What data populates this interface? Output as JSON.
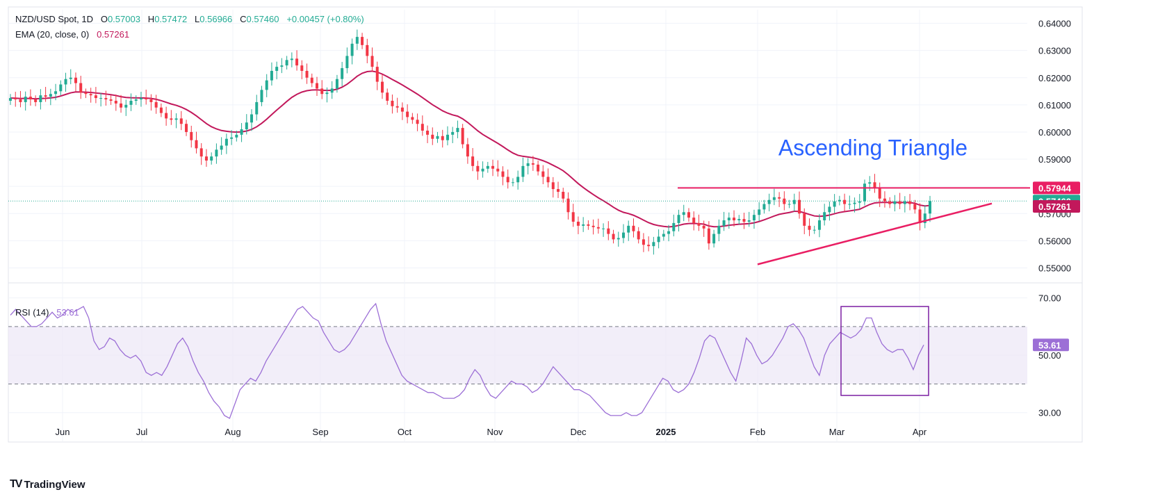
{
  "header": {
    "symbol": "NZD/USD Spot, 1D",
    "open_label": "O",
    "open": "0.57003",
    "high_label": "H",
    "high": "0.57472",
    "low_label": "L",
    "low": "0.56966",
    "close_label": "C",
    "close": "0.57460",
    "change": "+0.00457 (+0.80%)",
    "ema_label": "EMA (20, close, 0)",
    "ema_value": "0.57261",
    "rsi_label": "RSI (14)",
    "rsi_value": "53.61"
  },
  "brand": {
    "name": "TradingView",
    "logo": "TV"
  },
  "colors": {
    "up": "#22ab94",
    "down": "#f23645",
    "ema": "#c2185b",
    "trend": "#e91e63",
    "rsi": "#9c6fd6",
    "rsi_band": "#ede7f6"
  },
  "chart_data": [
    {
      "type": "candlestick",
      "title": "NZD/USD Spot, 1D",
      "ylim": [
        0.545,
        0.645
      ],
      "y_ticks": [
        "0.64000",
        "0.63000",
        "0.62000",
        "0.61000",
        "0.60000",
        "0.59000",
        "0.58000",
        "0.57000",
        "0.56000",
        "0.55000"
      ],
      "x_ticks": [
        "Jun",
        "Jul",
        "Aug",
        "Sep",
        "Oct",
        "Nov",
        "Dec",
        "2025",
        "Feb",
        "Mar",
        "Apr"
      ],
      "closes": [
        0.6125,
        0.612,
        0.611,
        0.613,
        0.612,
        0.611,
        0.6135,
        0.613,
        0.614,
        0.615,
        0.6175,
        0.6195,
        0.62,
        0.618,
        0.6145,
        0.614,
        0.6135,
        0.6125,
        0.6125,
        0.612,
        0.6115,
        0.6105,
        0.609,
        0.61,
        0.6115,
        0.612,
        0.6125,
        0.612,
        0.611,
        0.609,
        0.607,
        0.605,
        0.6045,
        0.605,
        0.603,
        0.6,
        0.597,
        0.594,
        0.591,
        0.5895,
        0.591,
        0.5935,
        0.595,
        0.5975,
        0.598,
        0.599,
        0.601,
        0.6035,
        0.6065,
        0.611,
        0.6155,
        0.619,
        0.6225,
        0.624,
        0.6245,
        0.6265,
        0.627,
        0.6245,
        0.6225,
        0.62,
        0.618,
        0.616,
        0.614,
        0.6145,
        0.616,
        0.6195,
        0.6235,
        0.628,
        0.6325,
        0.635,
        0.632,
        0.628,
        0.624,
        0.6185,
        0.6145,
        0.6115,
        0.6095,
        0.609,
        0.6075,
        0.6055,
        0.6045,
        0.603,
        0.6005,
        0.599,
        0.5975,
        0.5985,
        0.597,
        0.599,
        0.6,
        0.6015,
        0.5955,
        0.591,
        0.5875,
        0.5855,
        0.5865,
        0.5875,
        0.5865,
        0.5855,
        0.5835,
        0.5815,
        0.5815,
        0.5835,
        0.5875,
        0.5885,
        0.588,
        0.5855,
        0.5835,
        0.5815,
        0.579,
        0.578,
        0.5755,
        0.5705,
        0.567,
        0.5655,
        0.566,
        0.5655,
        0.565,
        0.5645,
        0.5645,
        0.5625,
        0.5605,
        0.561,
        0.563,
        0.5655,
        0.5635,
        0.5605,
        0.5585,
        0.558,
        0.5595,
        0.5615,
        0.5625,
        0.5635,
        0.5665,
        0.5695,
        0.5705,
        0.5685,
        0.5665,
        0.5655,
        0.5645,
        0.559,
        0.5625,
        0.5655,
        0.5675,
        0.5685,
        0.5675,
        0.568,
        0.567,
        0.5675,
        0.5695,
        0.5715,
        0.5735,
        0.575,
        0.576,
        0.5755,
        0.5735,
        0.5735,
        0.575,
        0.57,
        0.5655,
        0.564,
        0.564,
        0.5675,
        0.5705,
        0.5725,
        0.5745,
        0.575,
        0.5735,
        0.5735,
        0.574,
        0.5745,
        0.581,
        0.5815,
        0.5795,
        0.5755,
        0.5745,
        0.5735,
        0.5745,
        0.5735,
        0.5745,
        0.5735,
        0.5715,
        0.5665,
        0.57,
        0.5746
      ],
      "series": [
        {
          "name": "EMA (20, close, 0)",
          "last": 0.57261
        }
      ],
      "price_labels": [
        {
          "value": 0.57944,
          "text": "0.57944",
          "color": "#e91e63"
        },
        {
          "value": 0.5746,
          "text": "0.57460",
          "color": "#22ab94"
        },
        {
          "value": 0.57261,
          "text": "0.57261",
          "color": "#c2185b"
        }
      ],
      "annotations": [
        {
          "text": "Ascending Triangle",
          "x_index": 148,
          "y": 0.594
        }
      ],
      "resistance": {
        "value": 0.57944,
        "x_start": 134,
        "x_end": 200
      },
      "support": {
        "start": [
          147,
          0.5513
        ],
        "end": [
          200,
          0.5737
        ]
      }
    },
    {
      "type": "line",
      "title": "RSI (14)",
      "ylim": [
        20,
        75
      ],
      "y_ticks": [
        "70.00",
        "50.00",
        "30.00"
      ],
      "bands": [
        40,
        60
      ],
      "last": 53.61,
      "values": [
        64,
        66,
        64,
        62,
        60,
        60,
        61,
        63,
        65,
        63,
        64,
        66,
        65,
        66,
        67,
        63,
        55,
        52,
        53,
        56,
        55,
        52,
        50,
        49,
        50,
        48,
        44,
        43,
        44,
        43,
        46,
        50,
        54,
        56,
        53,
        48,
        44,
        41,
        37,
        34,
        32,
        29,
        28,
        33,
        38,
        40,
        42,
        41,
        44,
        48,
        51,
        54,
        57,
        60,
        63,
        66,
        67,
        65,
        63,
        62,
        58,
        55,
        52,
        51,
        52,
        54,
        57,
        60,
        63,
        66,
        68,
        61,
        55,
        51,
        47,
        43,
        41,
        40,
        39,
        38,
        37,
        37,
        36,
        35,
        35,
        35,
        36,
        38,
        42,
        45,
        43,
        39,
        36,
        35,
        37,
        39,
        41,
        40,
        40,
        39,
        37,
        38,
        40,
        43,
        46,
        44,
        42,
        40,
        38,
        38,
        37,
        36,
        34,
        32,
        30,
        29,
        29,
        29,
        30,
        29,
        29,
        30,
        33,
        36,
        39,
        42,
        41,
        38,
        37,
        38,
        40,
        44,
        49,
        55,
        57,
        56,
        52,
        48,
        44,
        41,
        48,
        56,
        54,
        50,
        47,
        48,
        50,
        53,
        56,
        60,
        61,
        59,
        56,
        51,
        46,
        43,
        50,
        54,
        56,
        58,
        57,
        56,
        57,
        59,
        63,
        63,
        58,
        54,
        52,
        51,
        52,
        52,
        49,
        45,
        50,
        53.61
      ]
    }
  ]
}
